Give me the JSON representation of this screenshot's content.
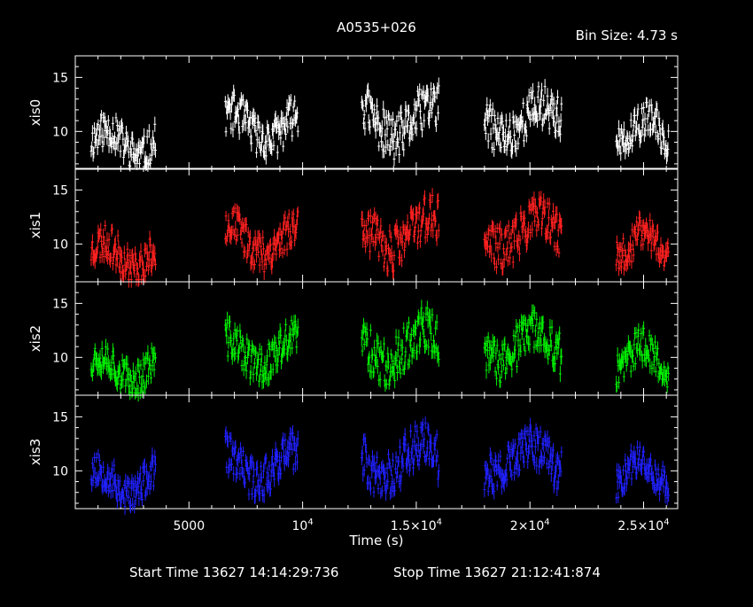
{
  "title": "A0535+026",
  "bin_size": "Bin Size: 4.73 s",
  "footer": {
    "start": "Start Time 13627 14:14:29:736",
    "stop": "Stop Time 13627 21:12:41:874"
  },
  "chart_data": {
    "type": "scatter",
    "xlabel": "Time (s)",
    "xlim": [
      0,
      26500
    ],
    "x_ticks": [
      {
        "value": 5000,
        "base": "5000",
        "exp": ""
      },
      {
        "value": 10000,
        "base": "10",
        "exp": "4"
      },
      {
        "value": 15000,
        "base": "1.5×10",
        "exp": "4"
      },
      {
        "value": 20000,
        "base": "2×10",
        "exp": "4"
      },
      {
        "value": 25000,
        "base": "2.5×10",
        "exp": "4"
      }
    ],
    "segments": [
      [
        700,
        3550
      ],
      [
        6600,
        9800
      ],
      [
        12600,
        16000
      ],
      [
        18000,
        21400
      ],
      [
        23800,
        26100
      ]
    ],
    "ylim": [
      6.5,
      17
    ],
    "y_ticks": [
      10,
      15
    ],
    "panels": [
      {
        "ylabel": "xis0",
        "color": "#ffffff",
        "seed": 11
      },
      {
        "ylabel": "xis1",
        "color": "#ff2020",
        "seed": 23
      },
      {
        "ylabel": "xis2",
        "color": "#00ee00",
        "seed": 37
      },
      {
        "ylabel": "xis3",
        "color": "#2020ff",
        "seed": 53
      }
    ],
    "segment_levels": [
      {
        "mean": 9.0,
        "amp": 2.0
      },
      {
        "mean": 10.5,
        "amp": 2.2
      },
      {
        "mean": 11.0,
        "amp": 2.6
      },
      {
        "mean": 11.0,
        "amp": 2.4
      },
      {
        "mean": 10.0,
        "amp": 2.0
      }
    ]
  }
}
